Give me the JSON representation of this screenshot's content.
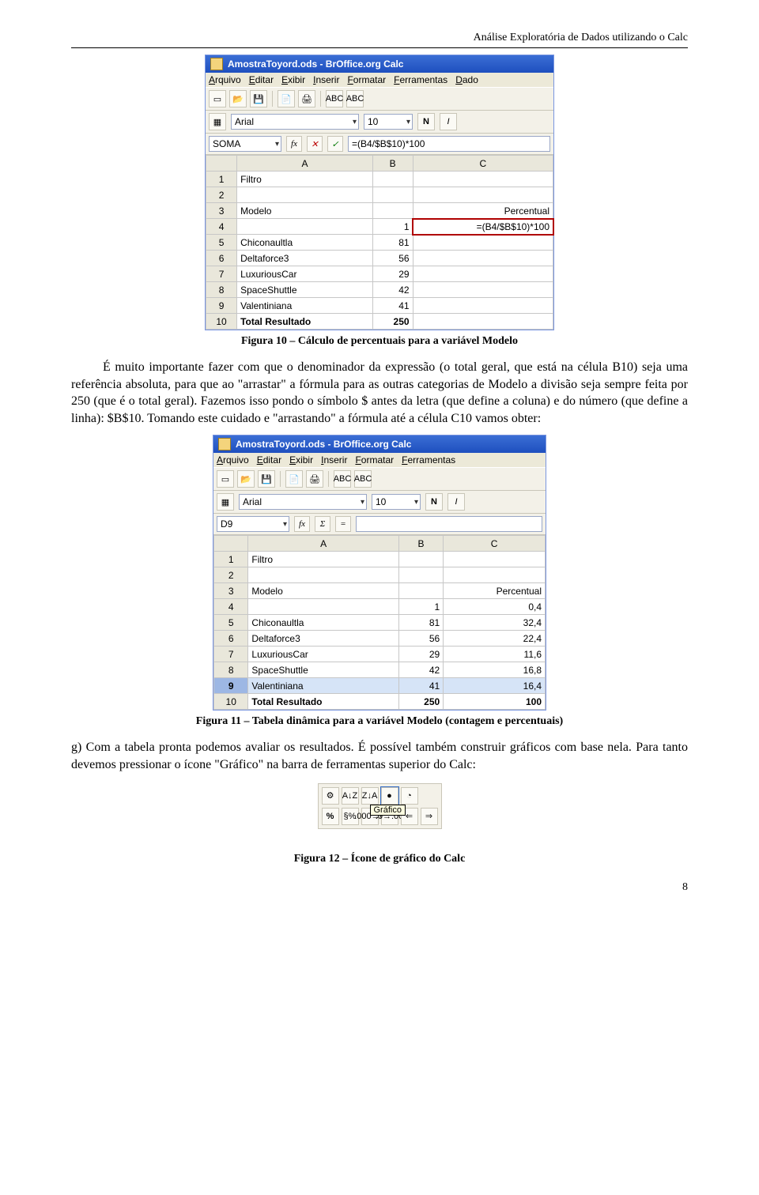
{
  "header": {
    "running_title": "Análise Exploratória de Dados utilizando o Calc"
  },
  "figure10": {
    "caption": "Figura 10 – Cálculo de percentuais para a variável Modelo",
    "calc": {
      "title": "AmostraToyord.ods - BrOffice.org Calc",
      "menus": [
        "Arquivo",
        "Editar",
        "Exibir",
        "Inserir",
        "Formatar",
        "Ferramentas",
        "Dado"
      ],
      "font_name": "Arial",
      "font_size": "10",
      "bold": "N",
      "italic": "I",
      "namebox": "SOMA",
      "fx_symbols": [
        "fx",
        "✕",
        "✓"
      ],
      "formula": "=(B4/$B$10)*100",
      "columns": [
        "",
        "A",
        "B",
        "C"
      ],
      "rows": [
        {
          "n": "1",
          "a": "Filtro",
          "b": "",
          "c": ""
        },
        {
          "n": "2",
          "a": "",
          "b": "",
          "c": ""
        },
        {
          "n": "3",
          "a": "Modelo",
          "b": "",
          "c": "Percentual"
        },
        {
          "n": "4",
          "a": "",
          "b": "1",
          "c": "=(B4/$B$10)*100",
          "edit": true
        },
        {
          "n": "5",
          "a": "Chiconaultla",
          "b": "81",
          "c": ""
        },
        {
          "n": "6",
          "a": "Deltaforce3",
          "b": "56",
          "c": ""
        },
        {
          "n": "7",
          "a": "LuxuriousCar",
          "b": "29",
          "c": ""
        },
        {
          "n": "8",
          "a": "SpaceShuttle",
          "b": "42",
          "c": ""
        },
        {
          "n": "9",
          "a": "Valentiniana",
          "b": "41",
          "c": ""
        },
        {
          "n": "10",
          "a": "Total Resultado",
          "b": "250",
          "c": "",
          "bold": true
        }
      ]
    }
  },
  "para1": "É muito importante fazer com que o denominador da expressão (o total geral, que está na célula B10) seja uma referência absoluta, para que ao \"arrastar\" a fórmula para as outras categorias de Modelo a divisão seja sempre feita por 250 (que é o total geral). Fazemos isso pondo o símbolo $ antes da letra (que define a coluna) e do número (que define a linha): $B$10. Tomando este cuidado e \"arrastando\" a fórmula até a célula C10 vamos obter:",
  "figure11": {
    "caption": "Figura 11 – Tabela dinâmica para a variável Modelo (contagem e percentuais)",
    "calc": {
      "title": "AmostraToyord.ods - BrOffice.org Calc",
      "menus": [
        "Arquivo",
        "Editar",
        "Exibir",
        "Inserir",
        "Formatar",
        "Ferramentas"
      ],
      "font_name": "Arial",
      "font_size": "10",
      "bold": "N",
      "italic": "I",
      "namebox": "D9",
      "fx_symbols": [
        "fx",
        "Σ",
        "="
      ],
      "formula": "",
      "columns": [
        "",
        "A",
        "B",
        "C"
      ],
      "rows": [
        {
          "n": "1",
          "a": "Filtro",
          "b": "",
          "c": ""
        },
        {
          "n": "2",
          "a": "",
          "b": "",
          "c": ""
        },
        {
          "n": "3",
          "a": "Modelo",
          "b": "",
          "c": "Percentual"
        },
        {
          "n": "4",
          "a": "",
          "b": "1",
          "c": "0,4"
        },
        {
          "n": "5",
          "a": "Chiconaultla",
          "b": "81",
          "c": "32,4"
        },
        {
          "n": "6",
          "a": "Deltaforce3",
          "b": "56",
          "c": "22,4"
        },
        {
          "n": "7",
          "a": "LuxuriousCar",
          "b": "29",
          "c": "11,6"
        },
        {
          "n": "8",
          "a": "SpaceShuttle",
          "b": "42",
          "c": "16,8"
        },
        {
          "n": "9",
          "a": "Valentiniana",
          "b": "41",
          "c": "16,4",
          "sel": true
        },
        {
          "n": "10",
          "a": "Total Resultado",
          "b": "250",
          "c": "100",
          "bold": true
        }
      ]
    }
  },
  "para2": "g) Com a tabela pronta podemos avaliar os resultados. É possível também construir gráficos com base nela. Para tanto devemos pressionar o ícone \"Gráfico\" na barra de ferramentas superior do Calc:",
  "figure12": {
    "caption": "Figura 12 – Ícone de gráfico do Calc",
    "tooltip": "Gráfico",
    "percent": "%",
    "btns_top": [
      "⚙",
      "A↓Z",
      "Z↓A",
      "●",
      "◔"
    ],
    "btns_bot": [
      "%",
      "§%",
      ".000→0",
      ".0→.00",
      "⇐",
      "⇒"
    ]
  },
  "page_number": "8"
}
